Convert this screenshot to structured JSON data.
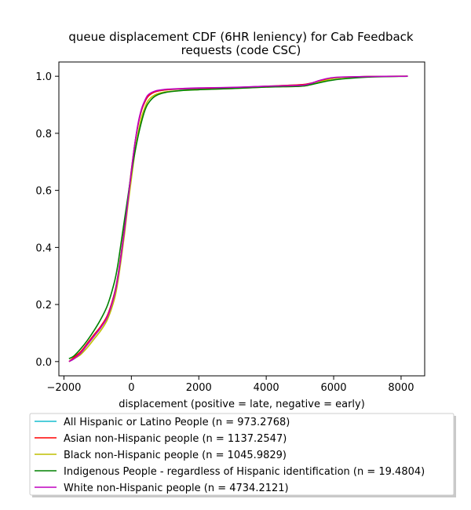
{
  "chart_data": {
    "type": "line",
    "title_line1": "queue displacement CDF (6HR leniency) for Cab Feedback",
    "title_line2": "requests (code CSC)",
    "xlabel": "displacement (positive = late, negative = early)",
    "ylabel": "",
    "xlim": [
      -2150,
      8700
    ],
    "ylim": [
      -0.05,
      1.05
    ],
    "xticks": [
      -2000,
      0,
      2000,
      4000,
      6000,
      8000
    ],
    "yticks": [
      0.0,
      0.2,
      0.4,
      0.6,
      0.8,
      1.0
    ],
    "xtick_labels": [
      "−2000",
      "0",
      "2000",
      "4000",
      "6000",
      "8000"
    ],
    "ytick_labels": [
      "0.0",
      "0.2",
      "0.4",
      "0.6",
      "0.8",
      "1.0"
    ],
    "grid": false,
    "legend_position": "bottom-center, below plot",
    "series": [
      {
        "name": "All Hispanic or Latino People (n = 973.2768)",
        "color": "#17becf",
        "x": [
          -1850,
          -1700,
          -1500,
          -1300,
          -1100,
          -900,
          -700,
          -500,
          -400,
          -300,
          -200,
          -100,
          0,
          100,
          200,
          300,
          400,
          500,
          700,
          1000,
          1500,
          2000,
          3000,
          4000,
          5000,
          5300,
          5600,
          5900,
          6200,
          7000,
          8200
        ],
        "y": [
          0.0,
          0.01,
          0.03,
          0.06,
          0.09,
          0.12,
          0.16,
          0.24,
          0.3,
          0.38,
          0.47,
          0.57,
          0.67,
          0.76,
          0.83,
          0.88,
          0.91,
          0.93,
          0.945,
          0.952,
          0.955,
          0.957,
          0.96,
          0.965,
          0.97,
          0.975,
          0.985,
          0.992,
          0.996,
          0.999,
          1.0
        ]
      },
      {
        "name": "Asian non-Hispanic people (n = 1137.2547)",
        "color": "#ff0000",
        "x": [
          -1850,
          -1700,
          -1500,
          -1300,
          -1100,
          -900,
          -700,
          -500,
          -400,
          -300,
          -200,
          -100,
          0,
          100,
          200,
          300,
          400,
          500,
          700,
          1000,
          1500,
          2000,
          3000,
          4000,
          5000,
          5300,
          5600,
          5900,
          6200,
          7000,
          8200
        ],
        "y": [
          0.0,
          0.015,
          0.035,
          0.065,
          0.095,
          0.125,
          0.165,
          0.24,
          0.3,
          0.38,
          0.47,
          0.57,
          0.67,
          0.76,
          0.83,
          0.88,
          0.91,
          0.93,
          0.945,
          0.952,
          0.956,
          0.958,
          0.96,
          0.965,
          0.97,
          0.975,
          0.985,
          0.992,
          0.996,
          0.999,
          1.0
        ]
      },
      {
        "name": "Black non-Hispanic people (n = 1045.9829)",
        "color": "#bfbf00",
        "x": [
          -1850,
          -1700,
          -1500,
          -1300,
          -1100,
          -900,
          -700,
          -500,
          -400,
          -300,
          -200,
          -100,
          0,
          100,
          200,
          300,
          400,
          500,
          700,
          1000,
          1500,
          2000,
          3000,
          4000,
          5000,
          5300,
          5600,
          5900,
          6200,
          7000,
          8200
        ],
        "y": [
          0.0,
          0.01,
          0.025,
          0.05,
          0.08,
          0.11,
          0.15,
          0.22,
          0.28,
          0.36,
          0.45,
          0.55,
          0.64,
          0.73,
          0.8,
          0.855,
          0.89,
          0.915,
          0.935,
          0.945,
          0.95,
          0.953,
          0.957,
          0.962,
          0.965,
          0.97,
          0.98,
          0.99,
          0.995,
          0.999,
          1.0
        ]
      },
      {
        "name": "Indigenous People - regardless of Hispanic identification (n = 19.4804)",
        "color": "#008000",
        "x": [
          -1850,
          -1700,
          -1500,
          -1300,
          -1100,
          -900,
          -700,
          -500,
          -400,
          -300,
          -200,
          -100,
          0,
          100,
          200,
          300,
          400,
          500,
          700,
          1000,
          1500,
          2000,
          3000,
          4000,
          5000,
          5300,
          5600,
          5900,
          6200,
          7000,
          8200
        ],
        "y": [
          0.01,
          0.02,
          0.045,
          0.075,
          0.11,
          0.15,
          0.2,
          0.28,
          0.34,
          0.42,
          0.5,
          0.58,
          0.66,
          0.73,
          0.79,
          0.84,
          0.88,
          0.905,
          0.93,
          0.943,
          0.95,
          0.953,
          0.957,
          0.962,
          0.965,
          0.97,
          0.978,
          0.985,
          0.99,
          0.997,
          1.0
        ]
      },
      {
        "name": "White non-Hispanic people (n = 4734.2121)",
        "color": "#bf00bf",
        "x": [
          -1850,
          -1700,
          -1500,
          -1300,
          -1100,
          -900,
          -700,
          -500,
          -400,
          -300,
          -200,
          -100,
          0,
          100,
          200,
          300,
          400,
          500,
          700,
          1000,
          1500,
          2000,
          3000,
          4000,
          5000,
          5300,
          5600,
          5900,
          6200,
          7000,
          8200
        ],
        "y": [
          0.0,
          0.01,
          0.03,
          0.06,
          0.09,
          0.12,
          0.16,
          0.235,
          0.295,
          0.375,
          0.465,
          0.565,
          0.665,
          0.76,
          0.835,
          0.885,
          0.915,
          0.935,
          0.948,
          0.954,
          0.957,
          0.959,
          0.961,
          0.965,
          0.968,
          0.974,
          0.986,
          0.994,
          0.997,
          0.999,
          1.0
        ]
      }
    ]
  }
}
